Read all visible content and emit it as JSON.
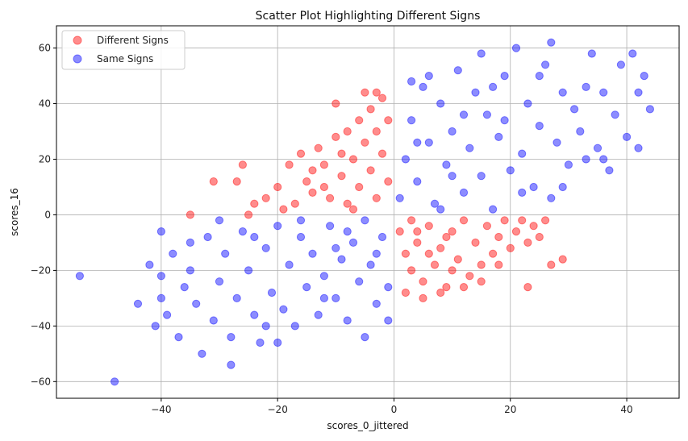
{
  "chart_data": {
    "type": "scatter",
    "title": "Scatter Plot Highlighting Different Signs",
    "xlabel": "scores_0_jittered",
    "ylabel": "scores_16",
    "xlim": [
      -58,
      49
    ],
    "ylim": [
      -66,
      68
    ],
    "xticks": [
      -40,
      -20,
      0,
      20,
      40
    ],
    "yticks": [
      -60,
      -40,
      -20,
      0,
      20,
      40,
      60
    ],
    "grid": true,
    "legend_position": "top-left",
    "series": [
      {
        "name": "Different Signs",
        "color": "#ff0000",
        "opacity": 0.45,
        "points": [
          [
            -35,
            0
          ],
          [
            -31,
            12
          ],
          [
            -27,
            12
          ],
          [
            -26,
            18
          ],
          [
            -25,
            0
          ],
          [
            -24,
            4
          ],
          [
            -22,
            6
          ],
          [
            -20,
            10
          ],
          [
            -18,
            18
          ],
          [
            -17,
            4
          ],
          [
            -16,
            22
          ],
          [
            -15,
            12
          ],
          [
            -14,
            8
          ],
          [
            -13,
            24
          ],
          [
            -12,
            18
          ],
          [
            -11,
            6
          ],
          [
            -10,
            28
          ],
          [
            -9,
            14
          ],
          [
            -8,
            30
          ],
          [
            -8,
            4
          ],
          [
            -7,
            20
          ],
          [
            -6,
            34
          ],
          [
            -6,
            10
          ],
          [
            -5,
            26
          ],
          [
            -4,
            16
          ],
          [
            -4,
            38
          ],
          [
            -3,
            6
          ],
          [
            -3,
            30
          ],
          [
            -2,
            22
          ],
          [
            -2,
            42
          ],
          [
            -1,
            12
          ],
          [
            -1,
            34
          ],
          [
            -10,
            40
          ],
          [
            -5,
            44
          ],
          [
            -3,
            44
          ],
          [
            -7,
            2
          ],
          [
            -12,
            10
          ],
          [
            -14,
            16
          ],
          [
            -19,
            2
          ],
          [
            -9,
            22
          ],
          [
            1,
            -6
          ],
          [
            2,
            -14
          ],
          [
            2,
            -28
          ],
          [
            3,
            -20
          ],
          [
            4,
            -10
          ],
          [
            5,
            -24
          ],
          [
            5,
            -30
          ],
          [
            6,
            -4
          ],
          [
            7,
            -18
          ],
          [
            8,
            -28
          ],
          [
            8,
            -12
          ],
          [
            9,
            -26
          ],
          [
            10,
            -6
          ],
          [
            10,
            -20
          ],
          [
            11,
            -16
          ],
          [
            12,
            -2
          ],
          [
            13,
            -22
          ],
          [
            14,
            -10
          ],
          [
            15,
            -18
          ],
          [
            16,
            -4
          ],
          [
            17,
            -14
          ],
          [
            18,
            -8
          ],
          [
            19,
            -2
          ],
          [
            20,
            -12
          ],
          [
            21,
            -6
          ],
          [
            22,
            -2
          ],
          [
            23,
            -10
          ],
          [
            24,
            -4
          ],
          [
            25,
            -8
          ],
          [
            26,
            -2
          ],
          [
            27,
            -18
          ],
          [
            29,
            -16
          ],
          [
            23,
            -26
          ],
          [
            12,
            -26
          ],
          [
            4,
            -6
          ],
          [
            6,
            -14
          ],
          [
            9,
            -8
          ],
          [
            15,
            -24
          ],
          [
            3,
            -2
          ],
          [
            18,
            -18
          ]
        ]
      },
      {
        "name": "Same Signs",
        "color": "#0000ff",
        "opacity": 0.45,
        "points": [
          [
            -54,
            -22
          ],
          [
            -48,
            -60
          ],
          [
            -44,
            -32
          ],
          [
            -42,
            -18
          ],
          [
            -41,
            -40
          ],
          [
            -40,
            -6
          ],
          [
            -40,
            -22
          ],
          [
            -40,
            -30
          ],
          [
            -39,
            -36
          ],
          [
            -38,
            -14
          ],
          [
            -37,
            -44
          ],
          [
            -36,
            -26
          ],
          [
            -35,
            -20
          ],
          [
            -34,
            -32
          ],
          [
            -33,
            -50
          ],
          [
            -32,
            -8
          ],
          [
            -31,
            -38
          ],
          [
            -30,
            -24
          ],
          [
            -29,
            -14
          ],
          [
            -28,
            -44
          ],
          [
            -27,
            -30
          ],
          [
            -26,
            -6
          ],
          [
            -25,
            -20
          ],
          [
            -24,
            -36
          ],
          [
            -23,
            -46
          ],
          [
            -22,
            -12
          ],
          [
            -21,
            -28
          ],
          [
            -20,
            -4
          ],
          [
            -19,
            -34
          ],
          [
            -18,
            -18
          ],
          [
            -17,
            -40
          ],
          [
            -16,
            -8
          ],
          [
            -15,
            -26
          ],
          [
            -14,
            -14
          ],
          [
            -13,
            -36
          ],
          [
            -12,
            -22
          ],
          [
            -11,
            -4
          ],
          [
            -10,
            -30
          ],
          [
            -9,
            -16
          ],
          [
            -8,
            -38
          ],
          [
            -7,
            -10
          ],
          [
            -6,
            -24
          ],
          [
            -5,
            -2
          ],
          [
            -4,
            -18
          ],
          [
            -3,
            -32
          ],
          [
            -2,
            -8
          ],
          [
            -1,
            -26
          ],
          [
            -28,
            -54
          ],
          [
            -5,
            -44
          ],
          [
            -1,
            -38
          ],
          [
            -20,
            -46
          ],
          [
            -12,
            -30
          ],
          [
            -24,
            -8
          ],
          [
            -16,
            -2
          ],
          [
            -8,
            -6
          ],
          [
            -30,
            -2
          ],
          [
            -35,
            -10
          ],
          [
            -22,
            -40
          ],
          [
            -10,
            -12
          ],
          [
            -3,
            -14
          ],
          [
            1,
            6
          ],
          [
            2,
            20
          ],
          [
            3,
            34
          ],
          [
            4,
            12
          ],
          [
            5,
            46
          ],
          [
            6,
            26
          ],
          [
            7,
            4
          ],
          [
            8,
            40
          ],
          [
            9,
            18
          ],
          [
            10,
            30
          ],
          [
            11,
            52
          ],
          [
            12,
            8
          ],
          [
            13,
            24
          ],
          [
            14,
            44
          ],
          [
            15,
            14
          ],
          [
            16,
            36
          ],
          [
            17,
            2
          ],
          [
            18,
            28
          ],
          [
            19,
            50
          ],
          [
            20,
            16
          ],
          [
            21,
            60
          ],
          [
            22,
            22
          ],
          [
            23,
            40
          ],
          [
            24,
            10
          ],
          [
            25,
            32
          ],
          [
            26,
            54
          ],
          [
            27,
            6
          ],
          [
            28,
            26
          ],
          [
            29,
            44
          ],
          [
            30,
            18
          ],
          [
            31,
            38
          ],
          [
            32,
            30
          ],
          [
            33,
            20
          ],
          [
            34,
            58
          ],
          [
            35,
            24
          ],
          [
            36,
            44
          ],
          [
            37,
            16
          ],
          [
            38,
            36
          ],
          [
            39,
            54
          ],
          [
            40,
            28
          ],
          [
            41,
            58
          ],
          [
            42,
            24
          ],
          [
            42,
            44
          ],
          [
            43,
            50
          ],
          [
            44,
            38
          ],
          [
            36,
            20
          ],
          [
            33,
            46
          ],
          [
            27,
            62
          ],
          [
            25,
            50
          ],
          [
            15,
            58
          ],
          [
            6,
            50
          ],
          [
            3,
            48
          ],
          [
            8,
            2
          ],
          [
            12,
            36
          ],
          [
            17,
            46
          ],
          [
            22,
            8
          ],
          [
            29,
            10
          ],
          [
            10,
            14
          ],
          [
            4,
            26
          ],
          [
            19,
            34
          ]
        ]
      }
    ]
  }
}
